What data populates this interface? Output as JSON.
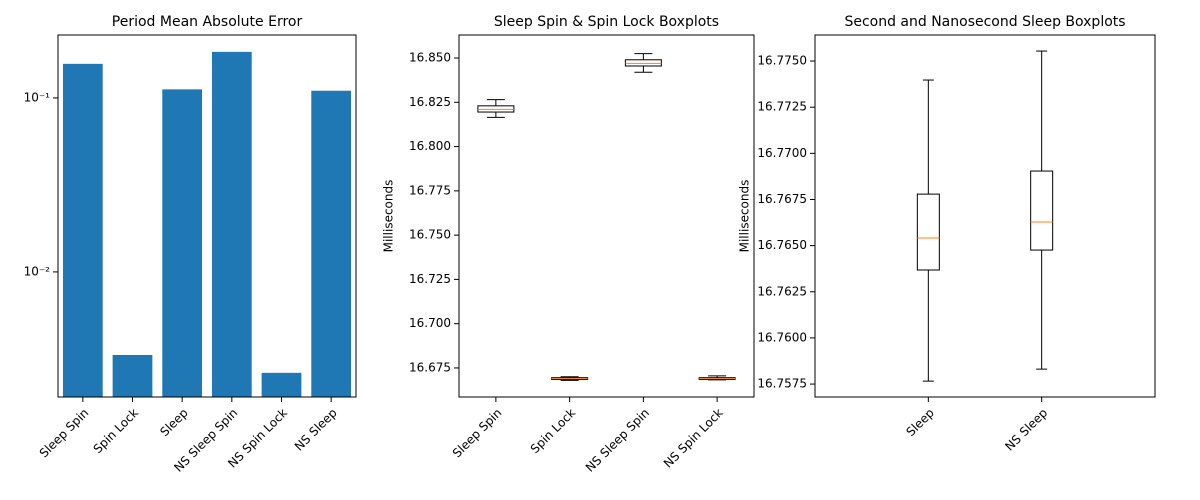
{
  "chart_data": [
    {
      "type": "bar",
      "title": "Period Mean Absolute Error",
      "categories": [
        "Sleep Spin",
        "Spin Lock",
        "Sleep",
        "NS Sleep Spin",
        "NS Spin Lock",
        "NS Sleep"
      ],
      "values": [
        0.157,
        0.00333,
        0.112,
        0.184,
        0.00263,
        0.11
      ],
      "color": "#1f77b4",
      "log_scale": true,
      "ylim": [
        0.00191,
        0.23
      ],
      "yticks": [
        {
          "value": 0.01,
          "label": "10⁻²"
        },
        {
          "value": 0.1,
          "label": "10⁻¹"
        }
      ]
    },
    {
      "type": "boxplot",
      "title": "Sleep Spin & Spin Lock Boxplots",
      "y_label": "Milliseconds",
      "categories": [
        "Sleep Spin",
        "Spin Lock",
        "NS Sleep Spin",
        "NS Spin Lock"
      ],
      "boxes": [
        {
          "whislo": 16.8165,
          "q1": 16.8195,
          "med": 16.821,
          "q3": 16.823,
          "whishi": 16.8265
        },
        {
          "whislo": 16.668,
          "q1": 16.6685,
          "med": 16.669,
          "q3": 16.6695,
          "whishi": 16.67
        },
        {
          "whislo": 16.842,
          "q1": 16.8455,
          "med": 16.847,
          "q3": 16.849,
          "whishi": 16.8525
        },
        {
          "whislo": 16.6683,
          "q1": 16.6685,
          "med": 16.669,
          "q3": 16.6695,
          "whishi": 16.6705
        }
      ],
      "median_color": "#ff7f0e",
      "ylim": [
        16.6586,
        16.863
      ],
      "yticks": [
        16.675,
        {
          "value": 16.7,
          "label": "16.700"
        },
        16.725,
        {
          "value": 16.75,
          "label": "16.750"
        },
        16.775,
        {
          "value": 16.8,
          "label": "16.800"
        },
        16.825,
        {
          "value": 16.85,
          "label": "16.850"
        }
      ]
    },
    {
      "type": "boxplot",
      "title": "Second and Nanosecond Sleep Boxplots",
      "y_label": "Milliseconds",
      "categories": [
        "Sleep",
        "NS Sleep"
      ],
      "boxes": [
        {
          "whislo": 16.75766,
          "q1": 16.76368,
          "med": 16.76541,
          "q3": 16.76779,
          "whishi": 16.77397
        },
        {
          "whislo": 16.75831,
          "q1": 16.76476,
          "med": 16.76628,
          "q3": 16.76904,
          "whishi": 16.77554
        }
      ],
      "median_color": "#ff7f0e",
      "ylim": [
        16.7568,
        16.77641
      ],
      "yticks": [
        16.7575,
        {
          "value": 16.76,
          "label": "16.7600"
        },
        16.7625,
        {
          "value": 16.765,
          "label": "16.7650"
        },
        16.7675,
        {
          "value": 16.77,
          "label": "16.7700"
        },
        16.7725,
        {
          "value": 16.775,
          "label": "16.7750"
        }
      ]
    }
  ]
}
